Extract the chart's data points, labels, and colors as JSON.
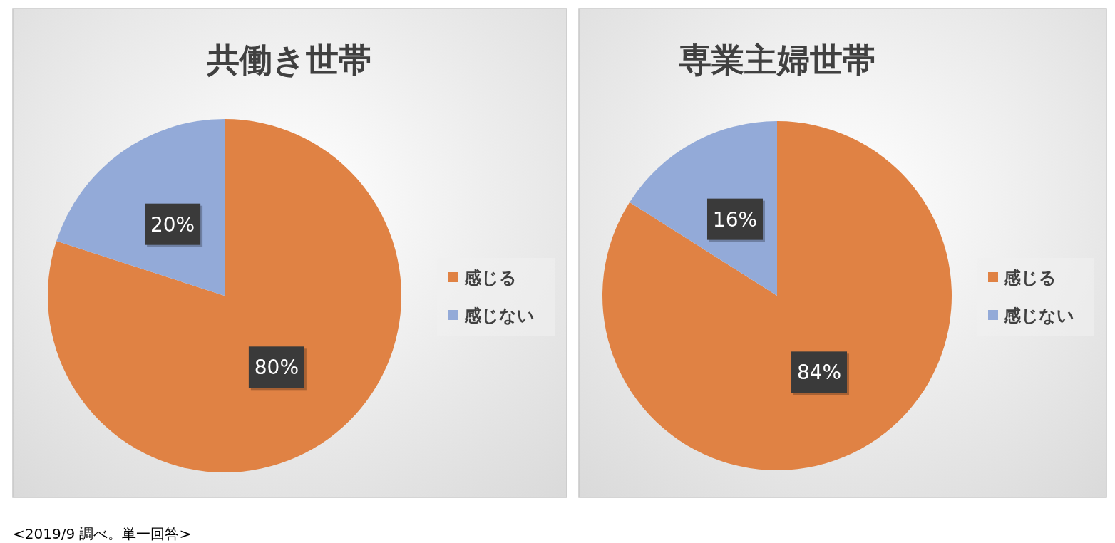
{
  "chart_data": [
    {
      "type": "pie",
      "title": "共働き世帯",
      "categories": [
        "感じる",
        "感じない"
      ],
      "values": [
        80,
        20
      ],
      "value_labels": [
        "80%",
        "20%"
      ],
      "colors": [
        "#e08244",
        "#93aad8"
      ],
      "legend": "right",
      "annotations": [
        "<2019/9 調べ。単一回答>"
      ]
    },
    {
      "type": "pie",
      "title": "専業主婦世帯",
      "categories": [
        "感じる",
        "感じない"
      ],
      "values": [
        84,
        16
      ],
      "value_labels": [
        "84%",
        "16%"
      ],
      "colors": [
        "#e08244",
        "#93aad8"
      ],
      "legend": "right"
    }
  ]
}
